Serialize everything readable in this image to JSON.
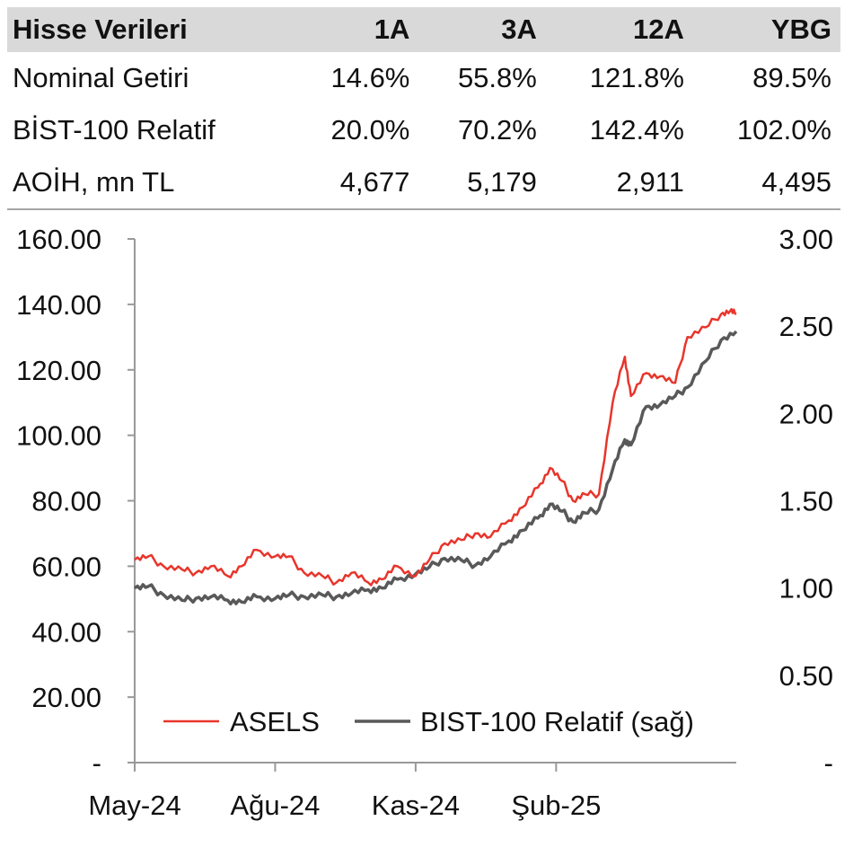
{
  "table": {
    "headers": [
      "Hisse Verileri",
      "1A",
      "3A",
      "12A",
      "YBG"
    ],
    "rows": [
      {
        "label": "Nominal Getiri",
        "values": [
          "14.6%",
          "55.8%",
          "121.8%",
          "89.5%"
        ]
      },
      {
        "label": "BİST-100 Relatif",
        "values": [
          "20.0%",
          "70.2%",
          "142.4%",
          "102.0%"
        ]
      },
      {
        "label": "AOİH, mn TL",
        "values": [
          "4,677",
          "5,179",
          "2,911",
          "4,495"
        ]
      }
    ]
  },
  "chart_data": {
    "type": "line",
    "x_ticks": [
      "May-24",
      "Ağu-24",
      "Kas-24",
      "Şub-25"
    ],
    "x_tick_dates": [
      "2024-05-01",
      "2024-08-01",
      "2024-11-01",
      "2025-02-01"
    ],
    "x_range": [
      "2024-05-01",
      "2025-05-30"
    ],
    "y_left": {
      "range": [
        0,
        160
      ],
      "ticks": [
        "-",
        "20.00",
        "40.00",
        "60.00",
        "80.00",
        "100.00",
        "120.00",
        "140.00",
        "160.00"
      ]
    },
    "y_right": {
      "range": [
        0,
        3
      ],
      "ticks": [
        "-",
        "0.50",
        "1.00",
        "1.50",
        "2.00",
        "2.50",
        "3.00"
      ]
    },
    "grid": false,
    "legend_position": "bottom-inside",
    "series": [
      {
        "name": "ASELS",
        "axis": "left",
        "color": "#e8352b",
        "points": [
          [
            "2024-05-01",
            62
          ],
          [
            "2024-05-10",
            63
          ],
          [
            "2024-05-20",
            60
          ],
          [
            "2024-06-01",
            59
          ],
          [
            "2024-06-10",
            58
          ],
          [
            "2024-06-20",
            60
          ],
          [
            "2024-07-01",
            57
          ],
          [
            "2024-07-10",
            60
          ],
          [
            "2024-07-20",
            65
          ],
          [
            "2024-08-01",
            63
          ],
          [
            "2024-08-10",
            63
          ],
          [
            "2024-08-20",
            58
          ],
          [
            "2024-09-01",
            57
          ],
          [
            "2024-09-10",
            55
          ],
          [
            "2024-09-20",
            58
          ],
          [
            "2024-10-01",
            55
          ],
          [
            "2024-10-10",
            56
          ],
          [
            "2024-10-20",
            60
          ],
          [
            "2024-11-01",
            57
          ],
          [
            "2024-11-10",
            62
          ],
          [
            "2024-11-20",
            67
          ],
          [
            "2024-12-01",
            68
          ],
          [
            "2024-12-10",
            70
          ],
          [
            "2024-12-20",
            69
          ],
          [
            "2025-01-01",
            74
          ],
          [
            "2025-01-10",
            78
          ],
          [
            "2025-01-20",
            84
          ],
          [
            "2025-01-28",
            90
          ],
          [
            "2025-02-05",
            86
          ],
          [
            "2025-02-12",
            80
          ],
          [
            "2025-02-20",
            82
          ],
          [
            "2025-03-01",
            82
          ],
          [
            "2025-03-10",
            110
          ],
          [
            "2025-03-18",
            124
          ],
          [
            "2025-03-22",
            112
          ],
          [
            "2025-04-01",
            119
          ],
          [
            "2025-04-10",
            118
          ],
          [
            "2025-04-20",
            116
          ],
          [
            "2025-04-28",
            130
          ],
          [
            "2025-05-10",
            133
          ],
          [
            "2025-05-20",
            137
          ],
          [
            "2025-05-26",
            138
          ],
          [
            "2025-05-30",
            137
          ]
        ]
      },
      {
        "name": "BIST-100 Relatif (sağ)",
        "axis": "right",
        "color": "#595959",
        "points": [
          [
            "2024-05-01",
            1.0
          ],
          [
            "2024-05-10",
            1.01
          ],
          [
            "2024-05-20",
            0.96
          ],
          [
            "2024-06-01",
            0.93
          ],
          [
            "2024-06-10",
            0.94
          ],
          [
            "2024-06-20",
            0.95
          ],
          [
            "2024-07-01",
            0.93
          ],
          [
            "2024-07-10",
            0.92
          ],
          [
            "2024-07-20",
            0.95
          ],
          [
            "2024-08-01",
            0.94
          ],
          [
            "2024-08-10",
            0.96
          ],
          [
            "2024-08-20",
            0.95
          ],
          [
            "2024-09-01",
            0.96
          ],
          [
            "2024-09-10",
            0.95
          ],
          [
            "2024-09-20",
            0.97
          ],
          [
            "2024-10-01",
            0.99
          ],
          [
            "2024-10-10",
            1.0
          ],
          [
            "2024-10-20",
            1.05
          ],
          [
            "2024-11-01",
            1.08
          ],
          [
            "2024-11-10",
            1.12
          ],
          [
            "2024-11-20",
            1.17
          ],
          [
            "2024-12-01",
            1.16
          ],
          [
            "2024-12-10",
            1.13
          ],
          [
            "2024-12-20",
            1.18
          ],
          [
            "2025-01-01",
            1.27
          ],
          [
            "2025-01-10",
            1.33
          ],
          [
            "2025-01-20",
            1.4
          ],
          [
            "2025-01-28",
            1.48
          ],
          [
            "2025-02-05",
            1.44
          ],
          [
            "2025-02-12",
            1.38
          ],
          [
            "2025-02-20",
            1.43
          ],
          [
            "2025-03-01",
            1.45
          ],
          [
            "2025-03-10",
            1.68
          ],
          [
            "2025-03-18",
            1.85
          ],
          [
            "2025-03-22",
            1.82
          ],
          [
            "2025-04-01",
            2.04
          ],
          [
            "2025-04-10",
            2.05
          ],
          [
            "2025-04-20",
            2.1
          ],
          [
            "2025-04-28",
            2.15
          ],
          [
            "2025-05-10",
            2.3
          ],
          [
            "2025-05-20",
            2.42
          ],
          [
            "2025-05-30",
            2.47
          ]
        ]
      }
    ]
  }
}
